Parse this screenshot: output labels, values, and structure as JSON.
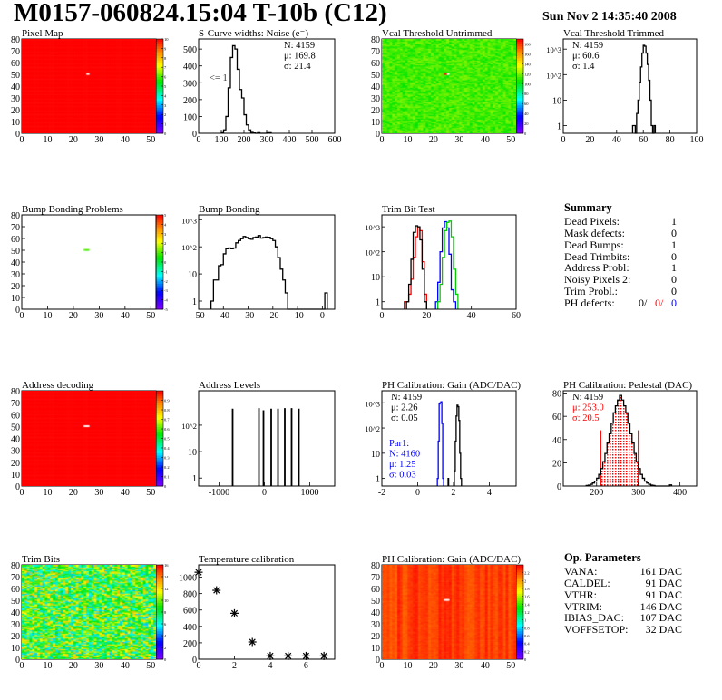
{
  "header": {
    "title": "M0157-060824.15:04 T-10b (C12)",
    "date": "Sun Nov  2 14:35:40 2008"
  },
  "colors": {
    "red": "#ff0000",
    "blue": "#0000ff",
    "green": "#00cc00",
    "black": "#000000"
  },
  "panels": [
    {
      "title": "Pixel Map",
      "type": "map",
      "xlim": [
        0,
        52
      ],
      "ylim": [
        0,
        80
      ],
      "xticks": [
        "0",
        "10",
        "20",
        "30",
        "40",
        "50"
      ],
      "yticks": [
        "0",
        "10",
        "20",
        "30",
        "40",
        "50",
        "60",
        "70",
        "80"
      ],
      "map": {
        "zmin": 0,
        "zmax": 10,
        "base": 10,
        "spread": 0,
        "pattern": "uniform",
        "white": [
          [
            25,
            50
          ]
        ]
      },
      "zticks": [
        "0",
        "1",
        "2",
        "3",
        "4",
        "5",
        "6",
        "7",
        "8",
        "9",
        "10"
      ]
    },
    {
      "title": "S-Curve widths: Noise (e⁻)",
      "type": "hist",
      "xlim": [
        0,
        600
      ],
      "ylim": [
        0,
        560
      ],
      "log": false,
      "xticks": [
        "0",
        "100",
        "200",
        "300",
        "400",
        "500",
        "600"
      ],
      "yticks": [
        "0",
        "100",
        "200",
        "300",
        "400",
        "500"
      ],
      "series": [
        {
          "color": "#000000",
          "x0": 100,
          "bw": 10,
          "values": [
            3,
            20,
            100,
            270,
            450,
            520,
            500,
            380,
            260,
            210,
            110,
            50,
            20,
            5,
            2,
            0,
            3,
            0,
            0,
            0,
            3,
            3
          ]
        }
      ],
      "stats": {
        "pos": "right",
        "lines": [
          {
            "t": "N: 4159"
          },
          {
            "t": "μ: 169.8"
          },
          {
            "t": "σ: 21.4"
          }
        ]
      },
      "note": "<= 1"
    },
    {
      "title": "Vcal Threshold Untrimmed",
      "type": "map",
      "xlim": [
        0,
        52
      ],
      "ylim": [
        0,
        80
      ],
      "xticks": [
        "0",
        "10",
        "20",
        "30",
        "40",
        "50"
      ],
      "yticks": [
        "0",
        "10",
        "20",
        "30",
        "40",
        "50",
        "60",
        "70",
        "80"
      ],
      "map": {
        "zmin": 0,
        "zmax": 190,
        "base": 113,
        "spread": 9,
        "pattern": "noise",
        "white": [
          [
            25,
            50
          ]
        ],
        "marks": [
          [
            24,
            50,
            190
          ]
        ]
      },
      "zticks": [
        "0",
        "20",
        "40",
        "60",
        "80",
        "100",
        "120",
        "140",
        "160",
        "180"
      ]
    },
    {
      "title": "Vcal Threshold Trimmed",
      "type": "hist",
      "xlim": [
        0,
        100
      ],
      "ylim": [
        0.5,
        2500
      ],
      "log": true,
      "xticks": [
        "0",
        "20",
        "40",
        "60",
        "80",
        "100"
      ],
      "yticks": [
        "1",
        "10",
        "10^2",
        "10^3"
      ],
      "series": [
        {
          "color": "#000000",
          "x0": 52,
          "bw": 1,
          "values": [
            1,
            1,
            0,
            3,
            10,
            50,
            200,
            700,
            1400,
            1300,
            700,
            250,
            60,
            10,
            1,
            0,
            1
          ]
        }
      ],
      "stats": {
        "pos": "left",
        "lines": [
          {
            "t": "N: 4159"
          },
          {
            "t": "μ: 60.6"
          },
          {
            "t": "σ:  1.4"
          }
        ]
      }
    },
    {
      "title": "Bump Bonding Problems",
      "type": "map",
      "xlim": [
        0,
        52
      ],
      "ylim": [
        0,
        80
      ],
      "xticks": [
        "0",
        "10",
        "20",
        "30",
        "40",
        "50"
      ],
      "yticks": [
        "0",
        "10",
        "20",
        "30",
        "40",
        "50",
        "60",
        "70",
        "80"
      ],
      "map": {
        "zmin": -5,
        "zmax": 5,
        "base": null,
        "spread": 0,
        "pattern": "empty",
        "white": [],
        "marks": [
          [
            24,
            50,
            1
          ],
          [
            25,
            50,
            1
          ]
        ]
      },
      "zticks": [
        "-5",
        "-4",
        "-3",
        "-2",
        "-1",
        "0",
        "1",
        "2",
        "3",
        "4",
        "5"
      ]
    },
    {
      "title": "Bump Bonding",
      "type": "hist",
      "xlim": [
        -50,
        5
      ],
      "ylim": [
        0.5,
        1500
      ],
      "log": true,
      "xticks": [
        "-50",
        "-40",
        "-30",
        "-20",
        "-10",
        "0"
      ],
      "yticks": [
        "1",
        "10",
        "10^2",
        "10^3"
      ],
      "series": [
        {
          "color": "#000000",
          "x0": -45,
          "bw": 1,
          "values": [
            1,
            6,
            6,
            20,
            22,
            55,
            85,
            90,
            85,
            90,
            140,
            170,
            200,
            240,
            220,
            200,
            190,
            220,
            230,
            260,
            210,
            220,
            230,
            225,
            200,
            170,
            100,
            40,
            15,
            6,
            2,
            0,
            0,
            0,
            0,
            0,
            0,
            0,
            0,
            0,
            0,
            0,
            0,
            0,
            0,
            0,
            2
          ]
        }
      ]
    },
    {
      "title": "Trim Bit Test",
      "type": "hist",
      "xlim": [
        0,
        60
      ],
      "ylim": [
        0.5,
        3000
      ],
      "log": true,
      "xticks": [
        "0",
        "20",
        "40",
        "60"
      ],
      "yticks": [
        "1",
        "10",
        "10^2",
        "10^3"
      ],
      "series": [
        {
          "color": "#ff0000",
          "x0": 10,
          "bw": 1,
          "values": [
            1,
            1,
            2,
            8,
            60,
            400,
            1000,
            700,
            40,
            2
          ]
        },
        {
          "color": "#000000",
          "x0": 11,
          "bw": 1,
          "values": [
            1,
            5,
            50,
            600,
            1100,
            1000,
            300,
            20,
            1
          ]
        },
        {
          "color": "#0000ff",
          "x0": 24,
          "bw": 1,
          "values": [
            1,
            6,
            100,
            900,
            1600,
            900,
            80,
            3,
            1
          ]
        },
        {
          "color": "#00cc00",
          "x0": 25,
          "bw": 1,
          "values": [
            1,
            5,
            60,
            700,
            1500,
            1700,
            400,
            20,
            2
          ]
        }
      ]
    },
    {
      "type": "summary",
      "title": "Summary",
      "rows": [
        {
          "label": "Dead Pixels:",
          "value": "1"
        },
        {
          "label": "Mask defects:",
          "value": "0"
        },
        {
          "label": "Dead Bumps:",
          "value": "1"
        },
        {
          "label": "Dead Trimbits:",
          "value": "0"
        },
        {
          "label": "Address Probl:",
          "value": "1"
        },
        {
          "label": "Noisy Pixels 2:",
          "value": "0"
        },
        {
          "label": "Trim Probl.:",
          "value": "0"
        }
      ],
      "ph": {
        "label": "PH defects:",
        "v1": "0/",
        "v2": "0/",
        "v3": "0"
      }
    },
    {
      "title": "Address decoding",
      "type": "map",
      "xlim": [
        0,
        52
      ],
      "ylim": [
        0,
        80
      ],
      "xticks": [
        "0",
        "10",
        "20",
        "30",
        "40",
        "50"
      ],
      "yticks": [
        "0",
        "10",
        "20",
        "30",
        "40",
        "50",
        "60",
        "70",
        "80"
      ],
      "map": {
        "zmin": 0,
        "zmax": 1,
        "base": 1,
        "spread": 0,
        "pattern": "uniform",
        "white": [
          [
            24,
            50
          ],
          [
            25,
            50
          ]
        ]
      },
      "zticks": [
        "0",
        "0.1",
        "0.2",
        "0.3",
        "0.4",
        "0.5",
        "0.6",
        "0.7",
        "0.8",
        "0.9"
      ]
    },
    {
      "title": "Address Levels",
      "type": "hist",
      "xlim": [
        -1450,
        1550
      ],
      "ylim": [
        0.5,
        2000
      ],
      "log": true,
      "xticks": [
        "-1000",
        "0",
        "1000"
      ],
      "yticks": [
        "1",
        "10",
        "10^2"
      ],
      "spikes": {
        "color": "#000000",
        "bw": 12,
        "x": [
          -700,
          -120,
          -20,
          150,
          300,
          450,
          600,
          760
        ],
        "values": [
          400,
          420,
          350,
          400,
          400,
          420,
          420,
          400
        ]
      }
    },
    {
      "title": "PH Calibration: Gain (ADC/DAC)",
      "type": "hist",
      "xlim": [
        -2,
        5.5
      ],
      "ylim": [
        0.5,
        3000
      ],
      "log": true,
      "xticks": [
        "-2",
        "0",
        "2",
        "4"
      ],
      "yticks": [
        "1",
        "10",
        "10^2",
        "10^3"
      ],
      "series": [
        {
          "color": "#0000ff",
          "x0": 1.1,
          "bw": 0.05,
          "values": [
            1,
            30,
            900,
            1000,
            1100,
            150,
            1
          ]
        },
        {
          "color": "#000000",
          "x0": 2.05,
          "bw": 0.05,
          "values": [
            2,
            30,
            300,
            800,
            700,
            200,
            10,
            1
          ]
        },
        {
          "color": "#000000",
          "x0": 1.7,
          "bw": 0.03,
          "values": [
            1
          ]
        }
      ],
      "stats": {
        "pos": "left",
        "lines": [
          {
            "t": "N: 4159"
          },
          {
            "t": "μ: 2.26"
          },
          {
            "t": "σ: 0.05"
          }
        ]
      },
      "stats2": {
        "color": "#0000ff",
        "lines": [
          {
            "t": "Par1:"
          },
          {
            "t": "N: 4160"
          },
          {
            "t": "μ: 1.25"
          },
          {
            "t": "σ: 0.03"
          }
        ]
      }
    },
    {
      "title": "PH Calibration: Pedestal (DAC)",
      "type": "hist",
      "xlim": [
        120,
        440
      ],
      "ylim": [
        0,
        82
      ],
      "log": false,
      "xticks": [
        "200",
        "300",
        "400"
      ],
      "yticks": [
        "0",
        "20",
        "40",
        "60",
        "80"
      ],
      "series": [
        {
          "color": "#000000",
          "x0": 175,
          "bw": 5,
          "values": [
            0.5,
            0.8,
            1.5,
            2.6,
            4.2,
            6.7,
            10,
            15,
            21,
            28,
            37,
            45,
            54,
            63,
            69,
            74,
            78,
            74,
            69,
            63,
            54,
            45,
            37,
            28,
            21,
            15,
            10,
            6.7,
            4.2,
            2.6,
            1.5,
            0.8,
            0.5,
            0,
            0,
            0,
            0,
            0,
            0,
            0,
            1
          ]
        }
      ],
      "filled": {
        "color": "#ff0000",
        "x0": 210,
        "bw": 5,
        "values": [
          15,
          21,
          28,
          37,
          45,
          54,
          63,
          69,
          74,
          78,
          74,
          69,
          63,
          54,
          45,
          37,
          28,
          21
        ],
        "edge": 48
      },
      "stats": {
        "pos": "left",
        "lines": [
          {
            "t": "N: 4159"
          },
          {
            "t": "μ: 253.0",
            "c": "#ff0000"
          },
          {
            "t": "σ: 20.5",
            "c": "#ff0000"
          }
        ]
      }
    },
    {
      "title": "Trim Bits",
      "type": "map",
      "xlim": [
        0,
        52
      ],
      "ylim": [
        0,
        80
      ],
      "xticks": [
        "0",
        "10",
        "20",
        "30",
        "40",
        "50"
      ],
      "yticks": [
        "0",
        "10",
        "20",
        "30",
        "40",
        "50",
        "60",
        "70",
        "80"
      ],
      "map": {
        "zmin": 0,
        "zmax": 16,
        "base": 9,
        "spread": 4,
        "pattern": "noise",
        "white": []
      },
      "zticks": [
        "0",
        "2",
        "4",
        "6",
        "8",
        "10",
        "12",
        "14",
        "16"
      ]
    },
    {
      "title": "Temperature calibration",
      "type": "graph",
      "xlim": [
        0,
        7.6
      ],
      "ylim": [
        0,
        1150
      ],
      "log": false,
      "xticks": [
        "0",
        "2",
        "4",
        "6"
      ],
      "yticks": [
        "0",
        "200",
        "400",
        "600",
        "800",
        "1000"
      ],
      "points": {
        "x": [
          0,
          1,
          2,
          3,
          4,
          5,
          6,
          7
        ],
        "y": [
          1060,
          840,
          560,
          210,
          40,
          40,
          40,
          40
        ]
      }
    },
    {
      "title": "PH Calibration: Gain (ADC/DAC)",
      "type": "map",
      "xlim": [
        0,
        52
      ],
      "ylim": [
        0,
        80
      ],
      "xticks": [
        "0",
        "10",
        "20",
        "30",
        "40",
        "50"
      ],
      "yticks": [
        "0",
        "10",
        "20",
        "30",
        "40",
        "50",
        "60",
        "70",
        "80"
      ],
      "map": {
        "zmin": 0,
        "zmax": 2.4,
        "base": 2.25,
        "spread": 0.1,
        "pattern": "columns",
        "white": [
          [
            24,
            50
          ],
          [
            25,
            50
          ]
        ]
      },
      "zticks": [
        "0",
        "0.2",
        "0.4",
        "0.6",
        "0.8",
        "1",
        "1.2",
        "1.4",
        "1.6",
        "1.8",
        "2",
        "2.2"
      ]
    },
    {
      "type": "params",
      "title": "Op. Parameters",
      "rows": [
        {
          "label": "VANA:",
          "value": "161 DAC"
        },
        {
          "label": "CALDEL:",
          "value": "91 DAC"
        },
        {
          "label": "VTHR:",
          "value": "91 DAC"
        },
        {
          "label": "VTRIM:",
          "value": "146 DAC"
        },
        {
          "label": "IBIAS_DAC:",
          "value": "107 DAC"
        },
        {
          "label": "VOFFSETOP:",
          "value": "32 DAC"
        }
      ]
    }
  ]
}
